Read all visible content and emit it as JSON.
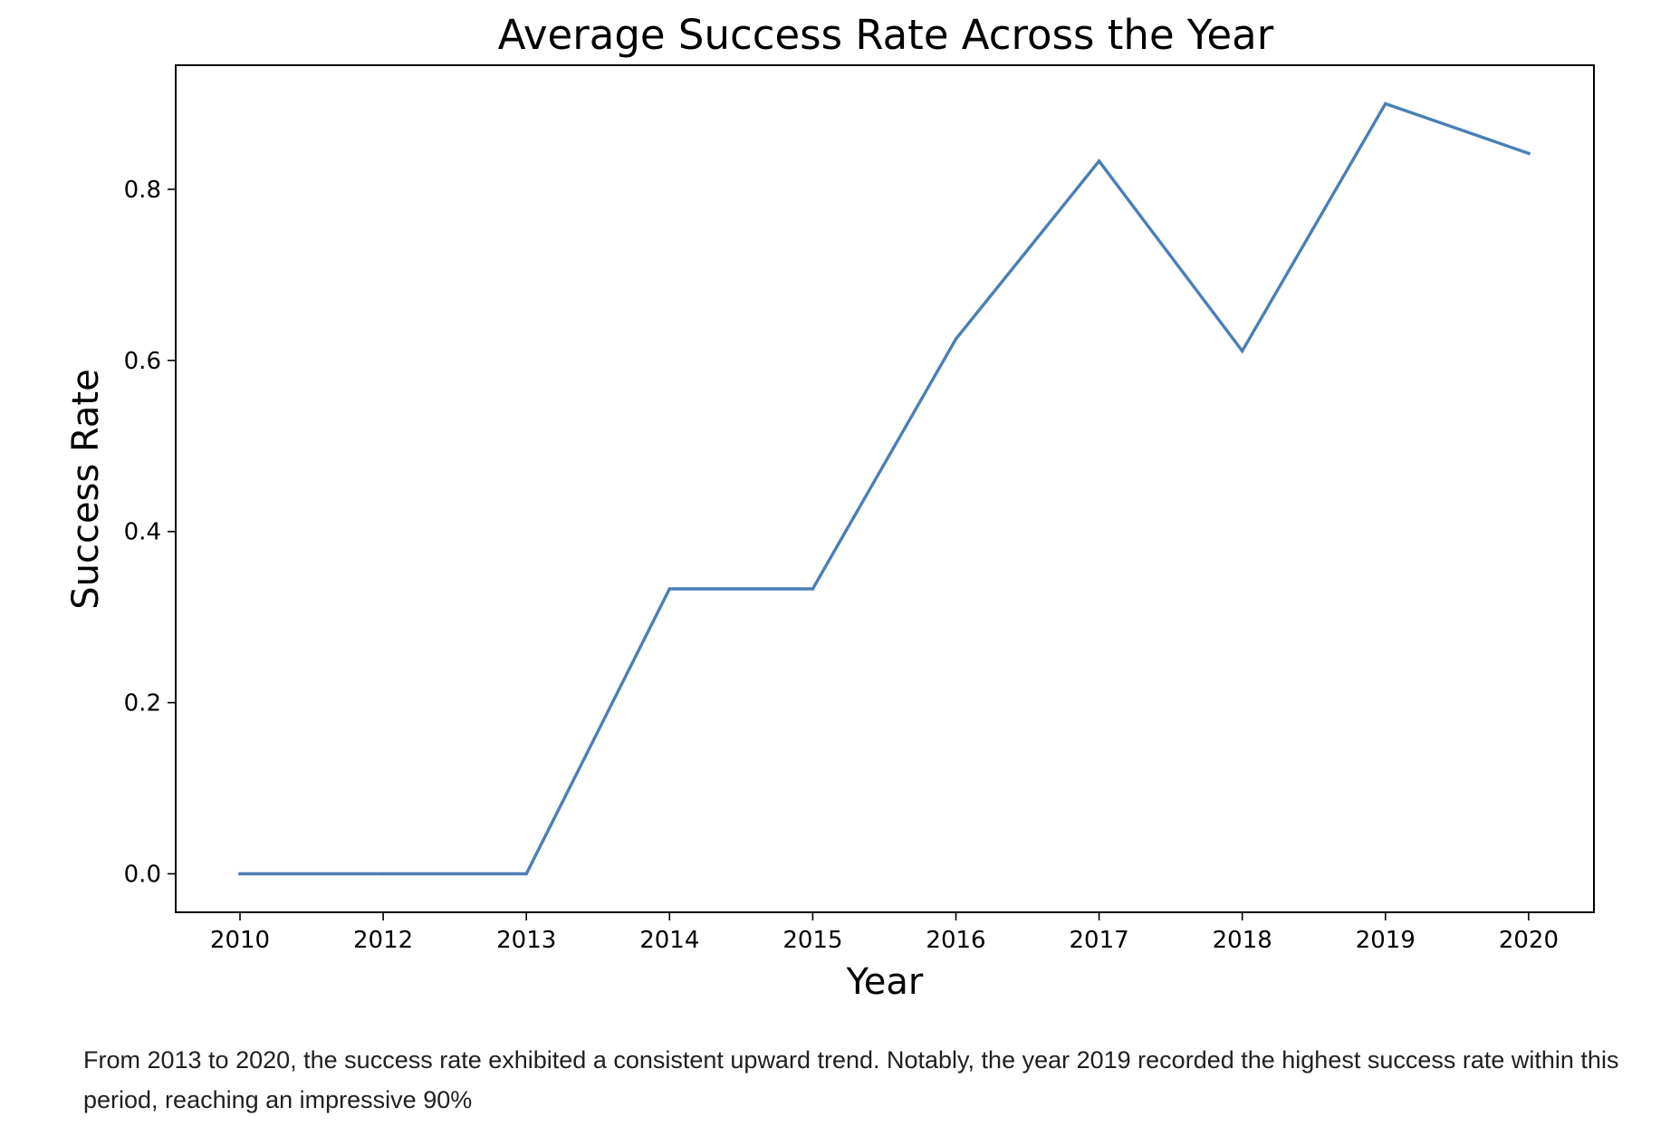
{
  "chart_data": {
    "type": "line",
    "title": "Average Success Rate Across the Year",
    "xlabel": "Year",
    "ylabel": "Success Rate",
    "categories": [
      "2010",
      "2012",
      "2013",
      "2014",
      "2015",
      "2016",
      "2017",
      "2018",
      "2019",
      "2020"
    ],
    "series": [
      {
        "values": [
          0.0,
          0.0,
          0.0,
          0.333,
          0.333,
          0.625,
          0.833,
          0.611,
          0.9,
          0.842
        ],
        "color": "#4a7fb5"
      }
    ],
    "yticks": [
      "0.0",
      "0.2",
      "0.4",
      "0.6",
      "0.8"
    ],
    "ylim": [
      -0.045,
      0.945
    ],
    "grid": false,
    "legend": "none"
  },
  "caption": "From 2013 to 2020, the success rate exhibited a consistent upward trend. Notably, the year 2019 recorded the highest success rate within this period, reaching an impressive 90%"
}
